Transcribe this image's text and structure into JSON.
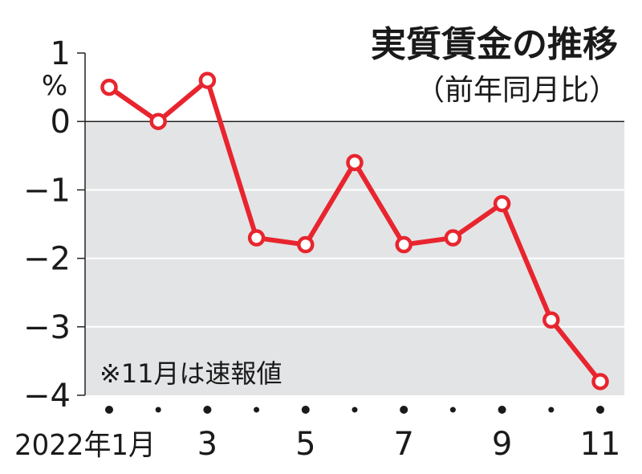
{
  "chart_data": {
    "type": "line",
    "title": "実質賃金の推移",
    "subtitle": "（前年同月比）",
    "ylabel": "%",
    "ylim": [
      -4,
      1
    ],
    "yticks": [
      1,
      0,
      -1,
      -2,
      -3,
      -4
    ],
    "ytick_labels": [
      "1",
      "0",
      "−1",
      "−2",
      "−3",
      "−4"
    ],
    "x": [
      1,
      2,
      3,
      4,
      5,
      6,
      7,
      8,
      9,
      10,
      11
    ],
    "xtick_labels": [
      "2022年1月",
      "3",
      "5",
      "7",
      "9",
      "11"
    ],
    "xtick_positions": [
      1,
      3,
      5,
      7,
      9,
      11
    ],
    "series": [
      {
        "values": [
          0.5,
          0.0,
          0.6,
          -1.7,
          -1.8,
          -0.6,
          -1.8,
          -1.7,
          -1.2,
          -2.9,
          -3.8
        ]
      }
    ],
    "note": "※11月は速報値",
    "grid": true,
    "line_color": "#e8252e",
    "negative_band_color": "#e3e4e6"
  }
}
